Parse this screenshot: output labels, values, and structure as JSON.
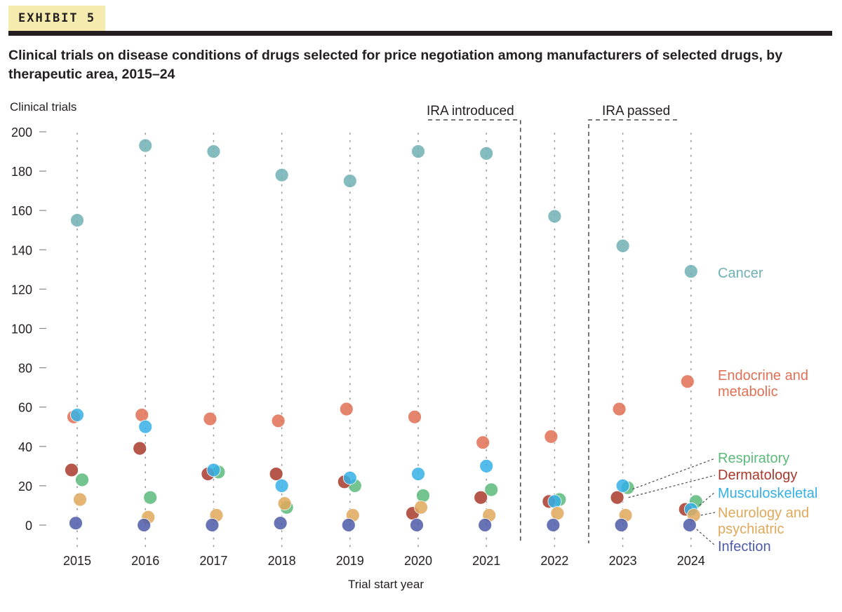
{
  "exhibit": {
    "label": "EXHIBIT 5"
  },
  "title": "Clinical trials on disease conditions of drugs selected for price negotiation among manufacturers of selected drugs, by therapeutic area, 2015–24",
  "chart_data": {
    "type": "scatter",
    "ylabel": "Clinical trials",
    "xlabel": "Trial start year",
    "ylim": [
      0,
      200
    ],
    "yticks": [
      0,
      20,
      40,
      60,
      80,
      100,
      120,
      140,
      160,
      180,
      200
    ],
    "categories": [
      "2015",
      "2016",
      "2017",
      "2018",
      "2019",
      "2020",
      "2021",
      "2022",
      "2023",
      "2024"
    ],
    "annotations": [
      {
        "label": "IRA introduced",
        "between": [
          "2021",
          "2022"
        ]
      },
      {
        "label": "IRA passed",
        "between": [
          "2022",
          "2023"
        ]
      }
    ],
    "series": [
      {
        "name": "Cancer",
        "legend": [
          "Cancer"
        ],
        "color": "#6fb0b5",
        "values": [
          155,
          193,
          190,
          178,
          175,
          190,
          189,
          157,
          142,
          129
        ]
      },
      {
        "name": "Endocrine and metabolic",
        "legend": [
          "Endocrine and",
          "metabolic"
        ],
        "color": "#e07055",
        "values": [
          55,
          56,
          54,
          53,
          59,
          55,
          42,
          45,
          59,
          73
        ]
      },
      {
        "name": "Respiratory",
        "legend": [
          "Respiratory"
        ],
        "color": "#5cba7b",
        "values": [
          23,
          14,
          27,
          9,
          20,
          15,
          18,
          13,
          19,
          12
        ]
      },
      {
        "name": "Dermatology",
        "legend": [
          "Dermatology"
        ],
        "color": "#a8392c",
        "values": [
          28,
          39,
          26,
          26,
          22,
          6,
          14,
          12,
          14,
          8
        ]
      },
      {
        "name": "Musculoskeletal",
        "legend": [
          "Musculoskeletal"
        ],
        "color": "#35b0e6",
        "values": [
          56,
          50,
          28,
          20,
          24,
          26,
          30,
          12,
          20,
          8
        ]
      },
      {
        "name": "Neurology and psychiatric",
        "legend": [
          "Neurology and",
          "psychiatric"
        ],
        "color": "#e0a95a",
        "values": [
          13,
          4,
          5,
          11,
          5,
          9,
          5,
          6,
          5,
          5
        ]
      },
      {
        "name": "Infection",
        "legend": [
          "Infection"
        ],
        "color": "#4c5aa8",
        "values": [
          1,
          0,
          0,
          1,
          0,
          0,
          0,
          0,
          0,
          0
        ]
      }
    ]
  }
}
